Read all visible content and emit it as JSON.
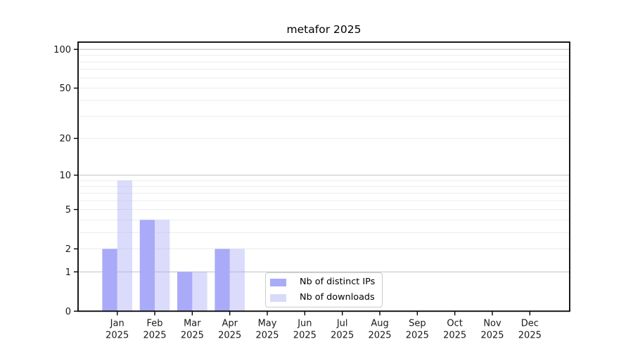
{
  "chart_data": {
    "type": "bar",
    "title": "metafor 2025",
    "categories": [
      "Jan 2025",
      "Feb 2025",
      "Mar 2025",
      "Apr 2025",
      "May 2025",
      "Jun 2025",
      "Jul 2025",
      "Aug 2025",
      "Sep 2025",
      "Oct 2025",
      "Nov 2025",
      "Dec 2025"
    ],
    "series": [
      {
        "name": "Nb of distinct IPs",
        "color": "#a9abf8",
        "opacity": 1,
        "values": [
          2,
          4,
          1,
          2,
          0,
          0,
          0,
          0,
          0,
          0,
          0,
          0
        ]
      },
      {
        "name": "Nb of downloads",
        "color": "#a9abf8",
        "opacity": 0.42,
        "legend_color": "#d9daf8",
        "values": [
          9,
          4,
          1,
          2,
          0,
          0,
          0,
          0,
          0,
          0,
          0,
          0
        ]
      }
    ],
    "yscale": "log1p",
    "ylim": [
      0,
      114
    ],
    "y_ticks": [
      0,
      1,
      2,
      5,
      10,
      20,
      50,
      100
    ],
    "y_major_grid": [
      1,
      10,
      100
    ],
    "y_minor_grid": [
      2,
      3,
      4,
      5,
      6,
      7,
      8,
      9,
      20,
      30,
      40,
      50,
      60,
      70,
      80,
      90
    ],
    "grid": true,
    "legend_position": "lower center",
    "colors": {
      "major_grid": "#c6c6c6",
      "minor_grid": "#ececec",
      "axis": "#000000",
      "tick_label": "#1a1a1a",
      "background": "#ffffff"
    }
  }
}
